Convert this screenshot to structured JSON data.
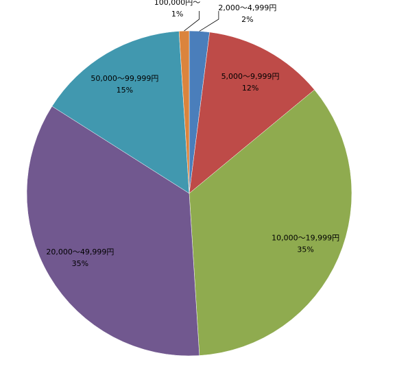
{
  "chart_data": {
    "type": "pie",
    "categories": [
      "2,000～4,999円",
      "5,000～9,999円",
      "10,000～19,999円",
      "20,000～49,999円",
      "50,000～99,999円",
      "100,000円～"
    ],
    "values": [
      2,
      12,
      35,
      35,
      15,
      1
    ],
    "value_labels": [
      "2%",
      "12%",
      "35%",
      "35%",
      "15%",
      "1%"
    ],
    "colors": [
      "#4a7ebb",
      "#be4b48",
      "#8fab4f",
      "#71588f",
      "#4198af",
      "#db843d"
    ]
  }
}
